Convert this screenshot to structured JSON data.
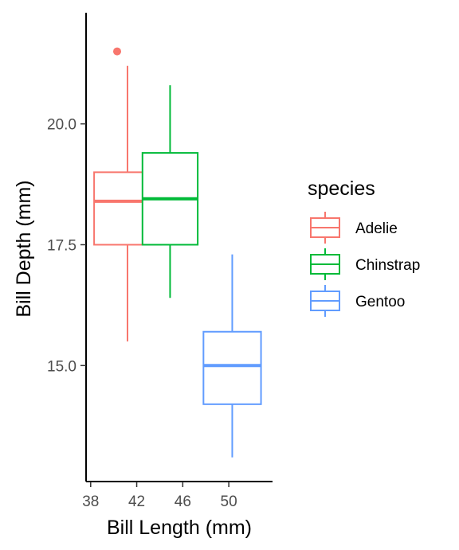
{
  "chart_data": {
    "type": "boxplot",
    "xlabel": "Bill Length (mm)",
    "ylabel": "Bill Depth (mm)",
    "xlim": [
      37.6,
      53.8
    ],
    "ylim": [
      12.6,
      22.3
    ],
    "xticks": [
      38,
      42,
      46,
      50
    ],
    "xtick_labels": [
      "38",
      "42",
      "46",
      "50"
    ],
    "yticks": [
      15,
      17.5,
      20
    ],
    "ytick_labels": [
      "15.0",
      "17.5",
      "20.0"
    ],
    "grid": false,
    "legend": {
      "title": "species",
      "placement": "right",
      "entries": [
        "Adelie",
        "Chinstrap",
        "Gentoo"
      ]
    },
    "series": [
      {
        "name": "Adelie",
        "color": "#F8766D",
        "x_range": [
          38.3,
          44.1
        ],
        "whisker_low": 15.5,
        "q1": 17.5,
        "median": 18.4,
        "q3": 19.0,
        "whisker_high": 21.2,
        "outliers": [
          {
            "x": 40.3,
            "y": 21.5
          }
        ]
      },
      {
        "name": "Chinstrap",
        "color": "#00BA38",
        "x_range": [
          42.5,
          47.3
        ],
        "whisker_low": 16.4,
        "q1": 17.5,
        "median": 18.45,
        "q3": 19.4,
        "whisker_high": 20.8,
        "outliers": []
      },
      {
        "name": "Gentoo",
        "color": "#619CFF",
        "x_range": [
          47.8,
          52.8
        ],
        "whisker_low": 13.1,
        "q1": 14.2,
        "median": 15.0,
        "q3": 15.7,
        "whisker_high": 17.3,
        "outliers": []
      }
    ]
  }
}
